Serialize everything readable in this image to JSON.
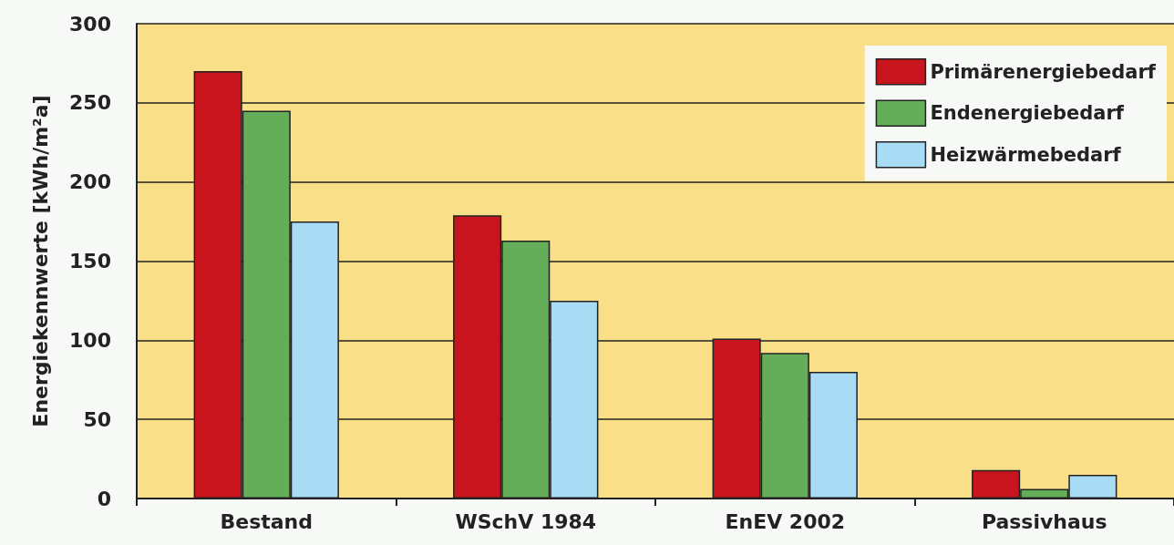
{
  "chart_data": {
    "type": "bar",
    "ylabel": "Energiekennwerte [kWh/m²a]",
    "categories": [
      "Bestand",
      "WSchV 1984",
      "EnEV 2002",
      "Passivhaus"
    ],
    "series": [
      {
        "name": "Primärenergiebedarf",
        "color": "#c8141c",
        "values": [
          270,
          179,
          101,
          18
        ]
      },
      {
        "name": "Endenergiebedarf",
        "color": "#64ae5a",
        "values": [
          245,
          163,
          92,
          6
        ]
      },
      {
        "name": "Heizwärmebedarf",
        "color": "#a8dcf4",
        "values": [
          175,
          125,
          80,
          15
        ]
      }
    ],
    "ylim": [
      0,
      300
    ],
    "yticks": [
      0,
      50,
      100,
      150,
      200,
      250,
      300
    ],
    "grid": "y",
    "legend": "top right"
  }
}
